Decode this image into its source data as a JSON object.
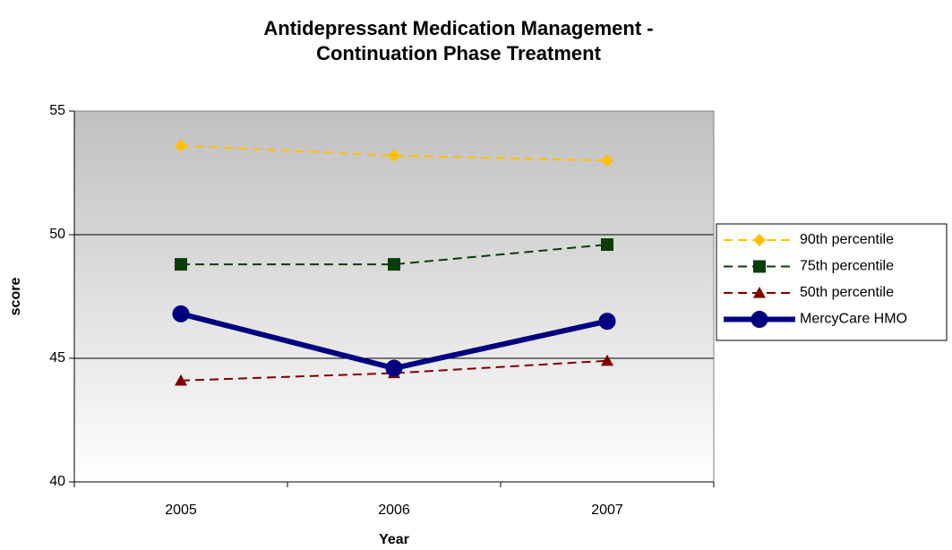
{
  "chart_data": {
    "type": "line",
    "title": [
      "Antidepressant Medication Management -",
      "Continuation Phase Treatment"
    ],
    "xlabel": "Year",
    "ylabel": "score",
    "categories": [
      "2005",
      "2006",
      "2007"
    ],
    "ylim": [
      40,
      55
    ],
    "yticks": [
      40,
      45,
      50,
      55
    ],
    "grid": true,
    "legend": "right",
    "series": [
      {
        "name": "90th percentile",
        "color": "#ffc000",
        "line_style": "dashed",
        "marker": "diamond",
        "values": [
          53.6,
          53.2,
          53.0
        ]
      },
      {
        "name": "75th percentile",
        "color": "#0b3d0b",
        "line_style": "dashed",
        "marker": "square",
        "values": [
          48.8,
          48.8,
          49.6
        ]
      },
      {
        "name": "50th percentile",
        "color": "#800000",
        "line_style": "dashed",
        "marker": "triangle",
        "values": [
          44.1,
          44.4,
          44.9
        ]
      },
      {
        "name": "MercyCare HMO",
        "color": "#000080",
        "line_style": "solid",
        "marker": "circle",
        "values": [
          46.8,
          44.6,
          46.5
        ]
      }
    ]
  }
}
